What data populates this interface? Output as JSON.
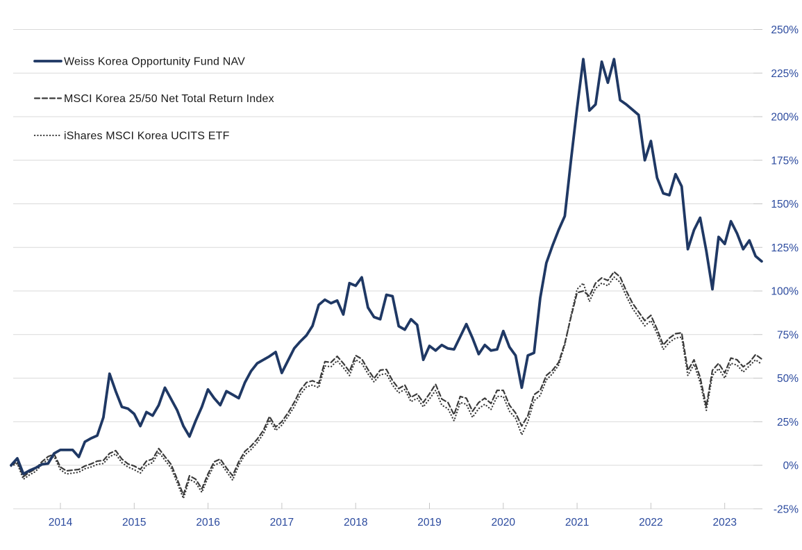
{
  "chart_data": {
    "type": "line",
    "title": "",
    "x_start": "2013-05",
    "x_freq": "monthly",
    "x_tick_labels": [
      "2014",
      "2015",
      "2016",
      "2017",
      "2018",
      "2019",
      "2020",
      "2021",
      "2022",
      "2023"
    ],
    "y_tick_values": [
      250,
      225,
      200,
      175,
      150,
      125,
      100,
      75,
      50,
      25,
      0,
      -25
    ],
    "y_tick_labels": [
      "250%",
      "225%",
      "200%",
      "175%",
      "150%",
      "125%",
      "100%",
      "75%",
      "50%",
      "25%",
      "0%",
      "-25%"
    ],
    "ylim": [
      -25,
      250
    ],
    "y_unit": "%",
    "grid": "horizontal",
    "legend_position": "top-left-overlay",
    "colors": {
      "nav_line": "#1f3864",
      "index_lines": "#3a3a3a",
      "gridline": "#d9d9d9",
      "tick": "#c4c4c4",
      "axis_label_text": "#2b4a9e",
      "legend_text": "#1a1a1a",
      "background": "#ffffff"
    },
    "series": [
      {
        "name": "Weiss Korea Opportunity Fund NAV",
        "line_style": "solid",
        "color": "#1f3864",
        "values": [
          0,
          4,
          -5,
          -3,
          -1.5,
          0.5,
          1,
          6.8,
          8.8,
          8.8,
          8.8,
          4.8,
          13.5,
          15.5,
          17,
          27.5,
          52.5,
          42.5,
          33.5,
          32.5,
          29.5,
          22.5,
          30.5,
          28.5,
          34.5,
          44.5,
          38,
          31.5,
          22.5,
          16.5,
          25.5,
          33.5,
          43.5,
          38.5,
          34.5,
          42.5,
          40.5,
          38.5,
          47.5,
          54,
          58.5,
          60.5,
          62.5,
          65,
          53,
          60,
          67,
          71,
          74.5,
          80,
          92,
          95,
          93,
          94.5,
          86.5,
          104.5,
          103,
          107.8,
          90.5,
          85,
          83.8,
          97.8,
          97,
          79.8,
          77.8,
          83.8,
          80.5,
          60.5,
          68.5,
          65.8,
          69,
          67,
          66.5,
          73.8,
          81,
          73,
          63.8,
          69,
          65.8,
          66.5,
          77,
          67.8,
          63,
          44.5,
          63,
          64.5,
          96,
          116,
          126,
          135,
          143,
          175,
          205,
          233,
          203.5,
          207,
          231.5,
          219.5,
          233,
          209.5,
          207,
          204,
          201,
          175,
          186,
          165,
          156,
          155,
          167,
          160,
          124,
          135,
          142,
          123,
          101,
          131,
          127,
          140,
          133,
          124,
          129,
          120,
          117
        ]
      },
      {
        "name": "MSCI Korea 25/50 Net Total Return Index",
        "line_style": "dashed",
        "color": "#3a3a3a",
        "values": [
          0,
          2,
          -6.5,
          -4,
          -2,
          2,
          5,
          6.4,
          -1,
          -3.2,
          -2.8,
          -2.4,
          -0.4,
          0.8,
          2.4,
          2.8,
          6.8,
          8.4,
          3.6,
          0.8,
          -0.4,
          -2.4,
          2.4,
          3.6,
          9.6,
          5,
          0.5,
          -8,
          -17,
          -6,
          -8,
          -13.5,
          -5,
          2,
          3.6,
          -1.5,
          -6,
          2,
          8,
          11,
          15,
          20,
          28,
          22,
          25,
          30,
          36,
          43,
          47.5,
          48.5,
          47,
          59.5,
          59,
          62.5,
          58.5,
          53.8,
          63,
          61,
          55,
          49.8,
          54.6,
          55,
          48.6,
          44,
          46,
          39,
          41,
          36,
          41,
          46.5,
          38,
          36,
          29,
          39.5,
          38.5,
          31,
          36,
          38.5,
          35.5,
          43,
          43,
          34.5,
          30,
          22.5,
          28.5,
          40.5,
          43,
          51.5,
          54.5,
          59,
          70,
          85,
          99,
          100,
          97,
          104.5,
          107.5,
          106,
          111,
          108,
          100,
          93,
          88,
          83,
          86,
          78,
          69,
          73,
          75.5,
          76,
          54.5,
          60.5,
          50.5,
          33.7,
          54.5,
          58.5,
          53,
          61.5,
          60.5,
          56.5,
          59,
          63.5,
          61
        ]
      },
      {
        "name": "iShares MSCI Korea UCITS ETF",
        "line_style": "dotted",
        "color": "#3a3a3a",
        "values": [
          -0.5,
          1,
          -8,
          -5.5,
          -3.5,
          0.5,
          3.5,
          5,
          -2.5,
          -5,
          -4.5,
          -4,
          -2,
          -1,
          0.5,
          1,
          5,
          6.5,
          1.5,
          -1,
          -2.5,
          -4.5,
          0,
          1.5,
          7.5,
          3,
          -1.5,
          -10,
          -19,
          -8,
          -10,
          -15.5,
          -7,
          0,
          1.5,
          -3.5,
          -8.5,
          0,
          6,
          9,
          13,
          18,
          26,
          20,
          23,
          28,
          33.5,
          40.5,
          45,
          46,
          44.5,
          57,
          56.5,
          60,
          56,
          51.5,
          60.5,
          58.5,
          52.5,
          47.8,
          52,
          52.5,
          46,
          41.5,
          43.5,
          36.5,
          38.5,
          33.5,
          38,
          43,
          34.5,
          32.5,
          25.5,
          36,
          35,
          27.5,
          32.5,
          35,
          32,
          39.5,
          39.5,
          31,
          27,
          17.5,
          25,
          37,
          40,
          49,
          52.5,
          57.5,
          69,
          86,
          101,
          104.5,
          94,
          101.5,
          104.5,
          103,
          108,
          105,
          97,
          90,
          85,
          80,
          83,
          75.5,
          66.5,
          70.5,
          73,
          73.5,
          51.5,
          58,
          47.5,
          31.5,
          51.5,
          55.5,
          50,
          58.5,
          57.5,
          53.5,
          57,
          60.5,
          58
        ]
      }
    ]
  }
}
